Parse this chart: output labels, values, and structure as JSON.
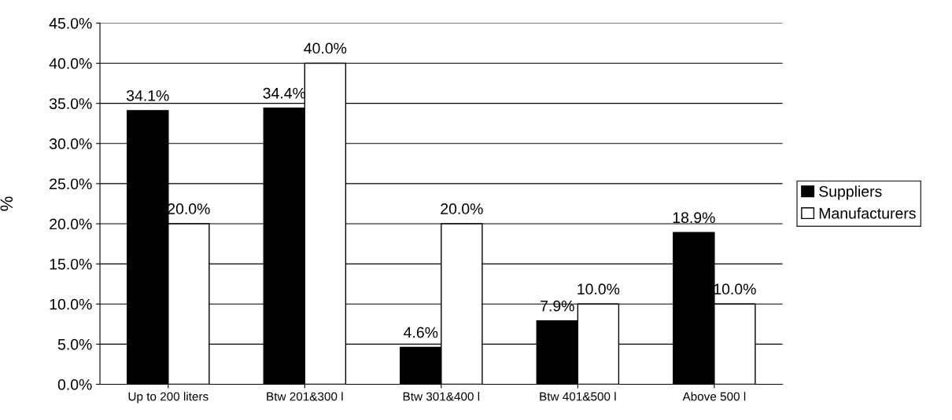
{
  "chart_data": {
    "type": "bar",
    "ylabel": "%",
    "categories": [
      "Up to 200 liters",
      "Btw 201&300 l",
      "Btw 301&400 l",
      "Btw 401&500 l",
      "Above 500 l"
    ],
    "series": [
      {
        "name": "Suppliers",
        "color": "#000000",
        "values": [
          34.1,
          34.4,
          4.6,
          7.9,
          18.9
        ],
        "value_labels": [
          "34.1%",
          "34.4%",
          "4.6%",
          "7.9%",
          "18.9%"
        ]
      },
      {
        "name": "Manufacturers",
        "color": "#ffffff",
        "values": [
          20.0,
          40.0,
          20.0,
          10.0,
          10.0
        ],
        "value_labels": [
          "20.0%",
          "40.0%",
          "20.0%",
          "10.0%",
          "10.0%"
        ]
      }
    ],
    "ylim": [
      0,
      45
    ],
    "yticks": [
      {
        "value": 0,
        "label": "0.0%"
      },
      {
        "value": 5,
        "label": "5.0%"
      },
      {
        "value": 10,
        "label": "10.0%"
      },
      {
        "value": 15,
        "label": "15.0%"
      },
      {
        "value": 20,
        "label": "20.0%"
      },
      {
        "value": 25,
        "label": "25.0%"
      },
      {
        "value": 30,
        "label": "30.0%"
      },
      {
        "value": 35,
        "label": "35.0%"
      },
      {
        "value": 40,
        "label": "40.0%"
      },
      {
        "value": 45,
        "label": "45.0%"
      }
    ],
    "grid": "y",
    "legend": "right"
  }
}
